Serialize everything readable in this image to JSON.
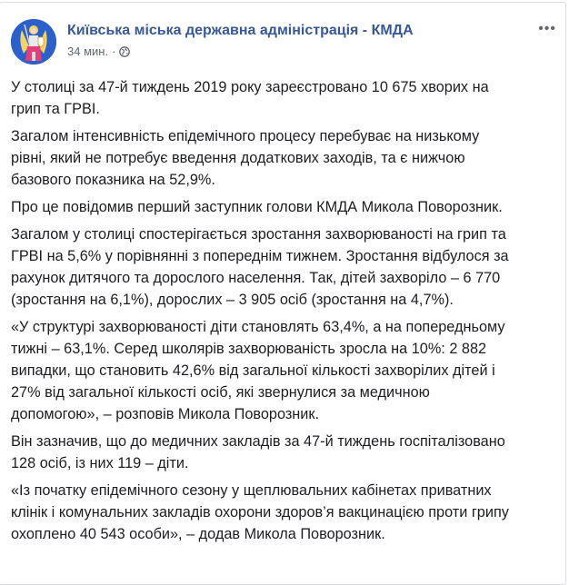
{
  "post": {
    "author": "Київська міська державна адміністрація - КМДА",
    "time": "34 мин.",
    "separator": "·",
    "privacy_icon": "globe-icon",
    "more_icon": "more-dots-icon",
    "accent_color": "#385898",
    "paragraphs": [
      [
        "У столиці за 47-й тиждень 2019 року зареєстровано 10 675 хворих на",
        "грип та ГРВІ."
      ],
      [
        "Загалом інтенсивність епідемічного процесу перебуває на низькому",
        "рівні, який не потребує введення додаткових заходів, та є нижчою",
        "базового показника на 52,9%."
      ],
      [
        "Про це повідомив перший заступник голови КМДА Микола Поворозник."
      ],
      [
        "Загалом у столиці спостерігається зростання захворюваності на грип та",
        "ГРВІ на 5,6% у порівнянні з попереднім тижнем. Зростання відбулося за",
        "рахунок дитячого та дорослого населення. Так, дітей захворіло – 6 770",
        "(зростання на 6,1%), дорослих – 3 905 осіб (зростання на 4,7%)."
      ],
      [
        "«У структурі захворюваності діти становлять 63,4%, а на попередньому",
        "тижні – 63,1%. Серед школярів захворюваність зросла на 10%: 2 882",
        "випадки, що становить 42,6% від загальної кількості захворілих дітей і",
        "27% від загальної кількості осіб, які звернулися за медичною",
        "допомогою», – розповів Микола Поворозник."
      ],
      [
        "Він зазначив, що до медичних закладів за 47-й тиждень госпіталізовано",
        "128 осіб, із них 119 – діти."
      ],
      [
        "«Із початку епідемічного сезону у щеплювальних кабінетах приватних",
        "клінік і комунальних закладів охорони здоров’я вакцинацією проти грипу",
        "охоплено 40 543 особи», – додав Микола Поворозник."
      ]
    ]
  }
}
